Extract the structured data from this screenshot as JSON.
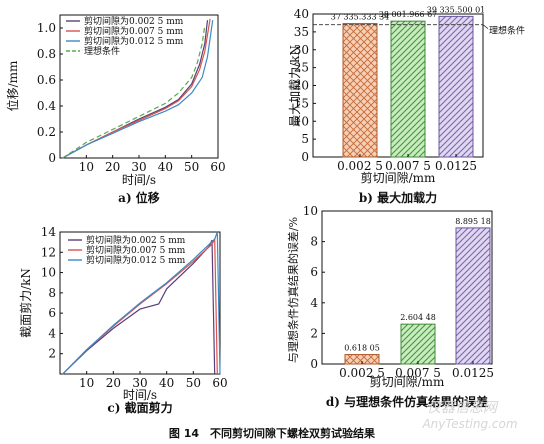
{
  "figure_caption": "图 14　不同剪切间隙下螺栓双剪试验结果",
  "watermark": {
    "line1": "仪器信息网",
    "line2": "AnyTesting.com"
  },
  "chart_data": [
    {
      "id": "a",
      "type": "line",
      "caption": "a) 位移",
      "xlabel": "时间/s",
      "ylabel": "位移/mm",
      "xlim": [
        0,
        60
      ],
      "ylim": [
        0,
        1.1
      ],
      "xticks": [
        "10",
        "20",
        "30",
        "40",
        "50",
        "60"
      ],
      "yticks": [
        "0",
        "0.2",
        "0.4",
        "0.6",
        "0.8",
        "1.0"
      ],
      "legend_position": "top-left",
      "series": [
        {
          "name": "剪切间隙为0.002 5 mm",
          "color": "#5a3f78",
          "dashed": false,
          "x": [
            1,
            10,
            20,
            30,
            40,
            45,
            50,
            53,
            55,
            56
          ],
          "y": [
            0.0,
            0.1,
            0.2,
            0.3,
            0.39,
            0.45,
            0.57,
            0.72,
            0.88,
            1.06
          ]
        },
        {
          "name": "剪切间隙为0.007 5 mm",
          "color": "#d9534f",
          "dashed": false,
          "x": [
            1,
            10,
            20,
            30,
            40,
            45,
            50,
            53,
            55,
            57
          ],
          "y": [
            0.0,
            0.1,
            0.2,
            0.29,
            0.38,
            0.44,
            0.55,
            0.68,
            0.82,
            1.07
          ]
        },
        {
          "name": "剪切间隙为0.012 5 mm",
          "color": "#3a8ac4",
          "dashed": false,
          "x": [
            1,
            10,
            20,
            30,
            40,
            45,
            50,
            54,
            56,
            58
          ],
          "y": [
            0.0,
            0.1,
            0.19,
            0.28,
            0.36,
            0.41,
            0.5,
            0.62,
            0.78,
            1.06
          ]
        },
        {
          "name": "理想条件",
          "color": "#5aa84e",
          "dashed": true,
          "x": [
            1,
            10,
            20,
            30,
            40,
            45,
            50,
            52,
            54,
            55
          ],
          "y": [
            0.0,
            0.12,
            0.22,
            0.32,
            0.42,
            0.5,
            0.62,
            0.72,
            0.88,
            1.02
          ]
        }
      ]
    },
    {
      "id": "b",
      "type": "bar",
      "caption": "b) 最大加载力",
      "xlabel": "剪切间隙/mm",
      "ylabel": "最大加载力/kN",
      "ylim": [
        0,
        40
      ],
      "yticks": [
        "0",
        "5",
        "10",
        "15",
        "20",
        "25",
        "30",
        "35",
        "40"
      ],
      "categories": [
        "0.002 5",
        "0.007 5",
        "0.0125"
      ],
      "values": [
        37.33533334,
        38.00196667,
        39.33550001
      ],
      "value_labels": [
        "37 335.333 34",
        "38 001.966 67",
        "39 335.500 01"
      ],
      "bar_colors": [
        "#e8a27c",
        "#8fcf7e",
        "#b9a6d8"
      ],
      "reference_line": {
        "label": "理想条件",
        "value": 37.0
      }
    },
    {
      "id": "c",
      "type": "line",
      "caption": "c) 截面剪力",
      "xlabel": "时间/s",
      "ylabel": "截面剪力/kN",
      "xlim": [
        0,
        60
      ],
      "ylim": [
        0,
        14
      ],
      "xticks": [
        "10",
        "20",
        "30",
        "40",
        "50",
        "60"
      ],
      "yticks": [
        "2",
        "4",
        "6",
        "8",
        "10",
        "12",
        "14"
      ],
      "legend_position": "top-left",
      "series": [
        {
          "name": "剪切间隙为0.002 5 mm",
          "color": "#5a3f78",
          "dashed": false,
          "x": [
            1,
            10,
            20,
            30,
            37,
            40,
            50,
            56,
            57,
            58
          ],
          "y": [
            0.0,
            2.3,
            4.5,
            6.4,
            6.9,
            8.4,
            10.9,
            12.6,
            13.2,
            0.0
          ]
        },
        {
          "name": "剪切间隙为0.007 5 mm",
          "color": "#d9534f",
          "dashed": false,
          "x": [
            1,
            10,
            20,
            30,
            40,
            50,
            57,
            58,
            59
          ],
          "y": [
            0.0,
            2.4,
            4.7,
            6.9,
            8.9,
            11.1,
            12.8,
            13.3,
            0.0
          ]
        },
        {
          "name": "剪切间隙为0.012 5 mm",
          "color": "#3a8ac4",
          "dashed": false,
          "x": [
            1,
            10,
            20,
            30,
            40,
            50,
            58,
            59,
            60
          ],
          "y": [
            0.0,
            2.4,
            4.8,
            7.0,
            9.0,
            11.3,
            13.3,
            14.0,
            0.0
          ]
        }
      ]
    },
    {
      "id": "d",
      "type": "bar",
      "caption": "d) 与理想条件仿真结果的误差",
      "xlabel": "剪切间隙/mm",
      "ylabel": "与理想条件仿真结果的误差/%",
      "ylim": [
        0,
        10
      ],
      "yticks": [
        "0",
        "2",
        "4",
        "6",
        "8",
        "10"
      ],
      "categories": [
        "0.002 5",
        "0.007 5",
        "0.0125"
      ],
      "values": [
        0.61805,
        2.60448,
        8.89518
      ],
      "value_labels": [
        "0.618 05",
        "2.604 48",
        "8.895 18"
      ],
      "bar_colors": [
        "#e8a27c",
        "#8fcf7e",
        "#b9a6d8"
      ]
    }
  ]
}
